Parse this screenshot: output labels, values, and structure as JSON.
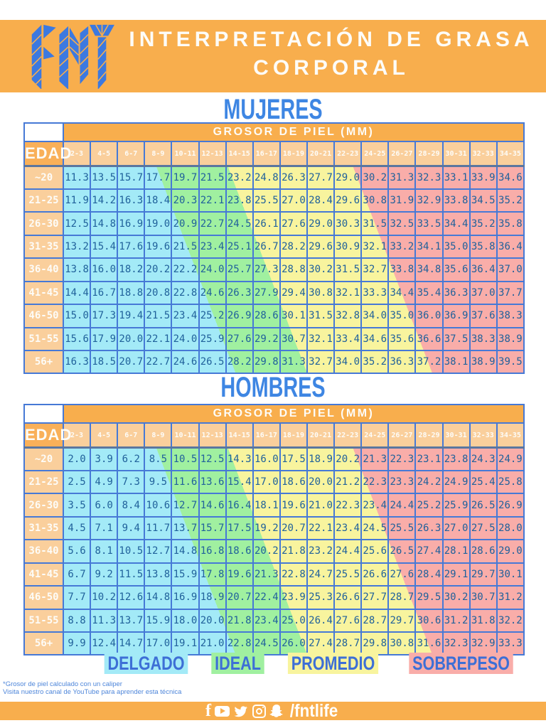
{
  "header": {
    "logo": "FNT",
    "title_line1": "INTERPRETACIÓN DE GRASA",
    "title_line2": "CORPORAL"
  },
  "tables": [
    {
      "id": "mujeres",
      "title": "MUJERES",
      "header_band": "GROSOR DE PIEL (MM)",
      "corner_label": "EDAD",
      "columns": [
        "2-3",
        "4-5",
        "6-7",
        "8-9",
        "10-11",
        "12-13",
        "14-15",
        "16-17",
        "18-19",
        "20-21",
        "22-23",
        "24-25",
        "26-27",
        "28-29",
        "30-31",
        "32-33",
        "34-35"
      ],
      "rows": [
        {
          "label": "~20",
          "values": [
            11.3,
            13.5,
            15.7,
            17.7,
            19.7,
            21.5,
            23.2,
            24.8,
            26.3,
            27.7,
            29.0,
            30.2,
            31.3,
            32.3,
            33.1,
            33.9,
            34.6
          ]
        },
        {
          "label": "21-25",
          "values": [
            11.9,
            14.2,
            16.3,
            18.4,
            20.3,
            22.1,
            23.8,
            25.5,
            27.0,
            28.4,
            29.6,
            30.8,
            31.9,
            32.9,
            33.8,
            34.5,
            35.2
          ]
        },
        {
          "label": "26-30",
          "values": [
            12.5,
            14.8,
            16.9,
            19.0,
            20.9,
            22.7,
            24.5,
            26.1,
            27.6,
            29.0,
            30.3,
            31.5,
            32.5,
            33.5,
            34.4,
            35.2,
            35.8
          ]
        },
        {
          "label": "31-35",
          "values": [
            13.2,
            15.4,
            17.6,
            19.6,
            21.5,
            23.4,
            25.1,
            26.7,
            28.2,
            29.6,
            30.9,
            32.1,
            33.2,
            34.1,
            35.0,
            35.8,
            36.4
          ]
        },
        {
          "label": "36-40",
          "values": [
            13.8,
            16.0,
            18.2,
            20.2,
            22.2,
            24.0,
            25.7,
            27.3,
            28.8,
            30.2,
            31.5,
            32.7,
            33.8,
            34.8,
            35.6,
            36.4,
            37.0
          ]
        },
        {
          "label": "41-45",
          "values": [
            14.4,
            16.7,
            18.8,
            20.8,
            22.8,
            24.6,
            26.3,
            27.9,
            29.4,
            30.8,
            32.1,
            33.3,
            34.4,
            35.4,
            36.3,
            37.0,
            37.7
          ]
        },
        {
          "label": "46-50",
          "values": [
            15.0,
            17.3,
            19.4,
            21.5,
            23.4,
            25.2,
            26.9,
            28.6,
            30.1,
            31.5,
            32.8,
            34.0,
            35.0,
            36.0,
            36.9,
            37.6,
            38.3
          ]
        },
        {
          "label": "51-55",
          "values": [
            15.6,
            17.9,
            20.0,
            22.1,
            24.0,
            25.9,
            27.6,
            29.2,
            30.7,
            32.1,
            33.4,
            34.6,
            35.6,
            36.6,
            37.5,
            38.3,
            38.9
          ]
        },
        {
          "label": "56+",
          "values": [
            16.3,
            18.5,
            20.7,
            22.7,
            24.6,
            26.5,
            28.2,
            29.8,
            31.3,
            32.7,
            34.0,
            35.2,
            36.3,
            37.2,
            38.1,
            38.9,
            39.5
          ]
        }
      ]
    },
    {
      "id": "hombres",
      "title": "HOMBRES",
      "header_band": "GROSOR DE PIEL (MM)",
      "corner_label": "EDAD",
      "columns": [
        "2-3",
        "4-5",
        "6-7",
        "8-9",
        "10-11",
        "12-13",
        "14-15",
        "16-17",
        "18-19",
        "20-21",
        "22-23",
        "24-25",
        "26-27",
        "28-29",
        "30-31",
        "32-33",
        "34-35"
      ],
      "rows": [
        {
          "label": "~20",
          "values": [
            2.0,
            3.9,
            6.2,
            8.5,
            10.5,
            12.5,
            14.3,
            16.0,
            17.5,
            18.9,
            20.2,
            21.3,
            22.3,
            23.1,
            23.8,
            24.3,
            24.9
          ]
        },
        {
          "label": "21-25",
          "values": [
            2.5,
            4.9,
            7.3,
            9.5,
            11.6,
            13.6,
            15.4,
            17.0,
            18.6,
            20.0,
            21.2,
            22.3,
            23.3,
            24.2,
            24.9,
            25.4,
            25.8
          ]
        },
        {
          "label": "26-30",
          "values": [
            3.5,
            6.0,
            8.4,
            10.6,
            12.7,
            14.6,
            16.4,
            18.1,
            19.6,
            21.0,
            22.3,
            23.4,
            24.4,
            25.2,
            25.9,
            26.5,
            26.9
          ]
        },
        {
          "label": "31-35",
          "values": [
            4.5,
            7.1,
            9.4,
            11.7,
            13.7,
            15.7,
            17.5,
            19.2,
            20.7,
            22.1,
            23.4,
            24.5,
            25.5,
            26.3,
            27.0,
            27.5,
            28.0
          ]
        },
        {
          "label": "36-40",
          "values": [
            5.6,
            8.1,
            10.5,
            12.7,
            14.8,
            16.8,
            18.6,
            20.2,
            21.8,
            23.2,
            24.4,
            25.6,
            26.5,
            27.4,
            28.1,
            28.6,
            29.0
          ]
        },
        {
          "label": "41-45",
          "values": [
            6.7,
            9.2,
            11.5,
            13.8,
            15.9,
            17.8,
            19.6,
            21.3,
            22.8,
            24.7,
            25.5,
            26.6,
            27.6,
            28.4,
            29.1,
            29.7,
            30.1
          ]
        },
        {
          "label": "46-50",
          "values": [
            7.7,
            10.2,
            12.6,
            14.8,
            16.9,
            18.9,
            20.7,
            22.4,
            23.9,
            25.3,
            26.6,
            27.7,
            28.7,
            29.5,
            30.2,
            30.7,
            31.2
          ]
        },
        {
          "label": "51-55",
          "values": [
            8.8,
            11.3,
            13.7,
            15.9,
            18.0,
            20.0,
            21.8,
            23.4,
            25.0,
            26.4,
            27.6,
            28.7,
            29.7,
            30.6,
            31.2,
            31.8,
            32.2
          ]
        },
        {
          "label": "56+",
          "values": [
            9.9,
            12.4,
            14.7,
            17.0,
            19.1,
            21.0,
            22.8,
            24.5,
            26.0,
            27.4,
            28.7,
            29.8,
            30.8,
            31.6,
            32.3,
            32.9,
            33.3
          ]
        }
      ]
    }
  ],
  "legend": {
    "items": [
      {
        "label": "DELGADO",
        "color": "#A3EAF7"
      },
      {
        "label": "IDEAL",
        "color": "#A0F0A0"
      },
      {
        "label": "PROMEDIO",
        "color": "#F8F49E"
      },
      {
        "label": "SOBREPESO",
        "color": "#F9ADA9"
      }
    ]
  },
  "footnote": {
    "line1": "*Grosor de piel calculado con un caliper",
    "line2": "Visita nuestro canal de YouTube para aprender esta técnica"
  },
  "footer": {
    "icons": [
      "facebook-icon",
      "youtube-icon",
      "twitter-icon",
      "instagram-icon",
      "snapchat-icon"
    ],
    "handle": "/fntlife"
  },
  "colors": {
    "band_orange": "#F8AE4D",
    "header_cell_orange": "#FACF9C",
    "edad_orange": "#F9B059",
    "title_blue": "#3E86E3",
    "border_blue": "#4679D6",
    "cell_text_blue": "#20619B",
    "legend_text_blue": "#3D6FD6",
    "delgado_cyan": "#A3EAF7",
    "ideal_green": "#A0F0A0",
    "promedio_yellow": "#F8F49E",
    "sobrepeso_pink": "#F9ADA9",
    "logo_blue": "#3C79E0",
    "footnote_blue": "#4E86DA"
  }
}
